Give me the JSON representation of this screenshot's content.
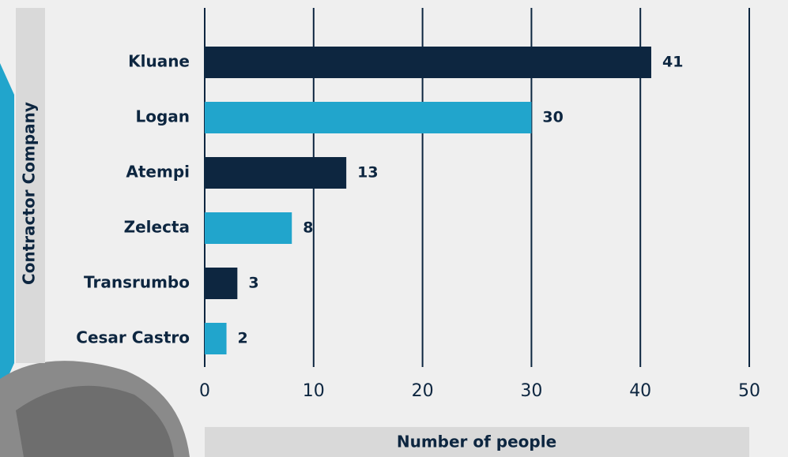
{
  "chart_data": {
    "type": "hbar",
    "y_label": "Contractor Company",
    "x_label": "Number of people",
    "categories": [
      "Kluane",
      "Logan",
      "Atempi",
      "Zelecta",
      "Transrumbo",
      "Cesar Castro"
    ],
    "values": [
      41,
      30,
      13,
      8,
      3,
      2
    ],
    "colors": [
      "#0d2640",
      "#21a5cc",
      "#0d2640",
      "#21a5cc",
      "#0d2640",
      "#21a5cc"
    ],
    "xlim": [
      0,
      50
    ],
    "xticks": [
      0,
      10,
      20,
      30,
      40,
      50
    ],
    "grid": true
  }
}
